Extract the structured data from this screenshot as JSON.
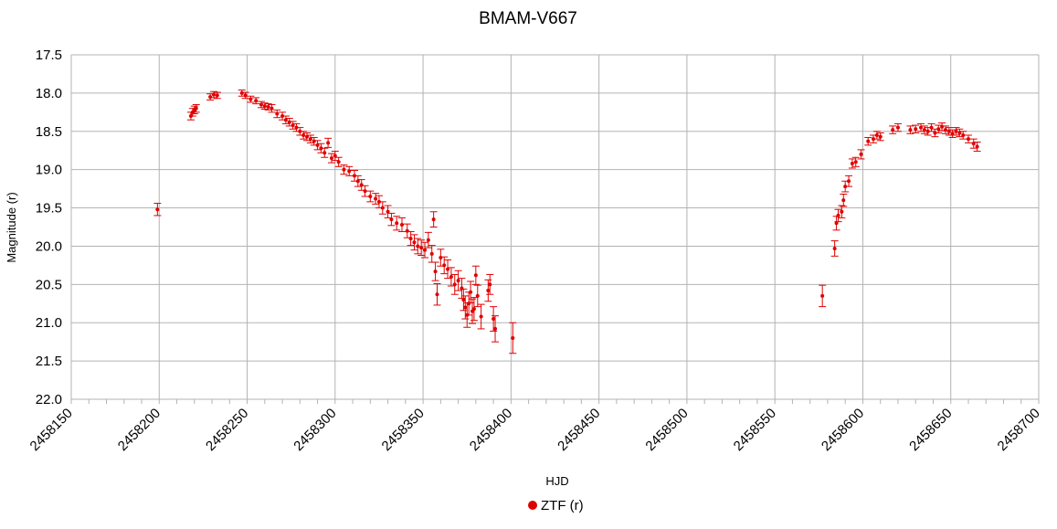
{
  "chart_data": {
    "type": "scatter",
    "title": "BMAM-V667",
    "xlabel": "HJD",
    "ylabel": "Magnitude (r)",
    "xlim": [
      2458150,
      2458700
    ],
    "ylim": [
      17.5,
      22.0
    ],
    "y_inverted": true,
    "grid": true,
    "legend_position": "bottom",
    "x_ticks": [
      "2458150",
      "2458200",
      "2458250",
      "2458300",
      "2458350",
      "2458400",
      "2458450",
      "2458500",
      "2458550",
      "2458600",
      "2458650",
      "2458700"
    ],
    "y_ticks": [
      "17.5",
      "18.0",
      "18.5",
      "19.0",
      "19.5",
      "20.0",
      "20.5",
      "21.0",
      "21.5",
      "22.0"
    ],
    "colors": {
      "series": "#e00000",
      "grid": "#b3b3b3"
    },
    "series": [
      {
        "name": "ZTF (r)",
        "points": [
          [
            2458199,
            19.52,
            0.08
          ],
          [
            2458218,
            18.3,
            0.05
          ],
          [
            2458219,
            18.25,
            0.05
          ],
          [
            2458220,
            18.22,
            0.05
          ],
          [
            2458221,
            18.2,
            0.05
          ],
          [
            2458229,
            18.05,
            0.04
          ],
          [
            2458231,
            18.02,
            0.04
          ],
          [
            2458233,
            18.03,
            0.04
          ],
          [
            2458247,
            18.0,
            0.04
          ],
          [
            2458249,
            18.03,
            0.04
          ],
          [
            2458252,
            18.08,
            0.04
          ],
          [
            2458255,
            18.1,
            0.04
          ],
          [
            2458258,
            18.15,
            0.04
          ],
          [
            2458260,
            18.17,
            0.04
          ],
          [
            2458262,
            18.18,
            0.04
          ],
          [
            2458264,
            18.2,
            0.05
          ],
          [
            2458267,
            18.27,
            0.05
          ],
          [
            2458270,
            18.3,
            0.05
          ],
          [
            2458272,
            18.35,
            0.05
          ],
          [
            2458274,
            18.38,
            0.05
          ],
          [
            2458276,
            18.42,
            0.05
          ],
          [
            2458278,
            18.45,
            0.05
          ],
          [
            2458280,
            18.5,
            0.05
          ],
          [
            2458282,
            18.55,
            0.05
          ],
          [
            2458284,
            18.57,
            0.05
          ],
          [
            2458286,
            18.6,
            0.05
          ],
          [
            2458288,
            18.63,
            0.05
          ],
          [
            2458290,
            18.68,
            0.06
          ],
          [
            2458292,
            18.72,
            0.06
          ],
          [
            2458294,
            18.78,
            0.06
          ],
          [
            2458296,
            18.65,
            0.06
          ],
          [
            2458298,
            18.85,
            0.06
          ],
          [
            2458300,
            18.82,
            0.06
          ],
          [
            2458302,
            18.9,
            0.06
          ],
          [
            2458305,
            19.0,
            0.06
          ],
          [
            2458308,
            19.02,
            0.06
          ],
          [
            2458311,
            19.08,
            0.07
          ],
          [
            2458313,
            19.15,
            0.07
          ],
          [
            2458315,
            19.2,
            0.07
          ],
          [
            2458317,
            19.28,
            0.07
          ],
          [
            2458320,
            19.35,
            0.07
          ],
          [
            2458323,
            19.38,
            0.07
          ],
          [
            2458325,
            19.42,
            0.08
          ],
          [
            2458327,
            19.5,
            0.08
          ],
          [
            2458330,
            19.55,
            0.08
          ],
          [
            2458332,
            19.65,
            0.08
          ],
          [
            2458335,
            19.7,
            0.09
          ],
          [
            2458338,
            19.72,
            0.09
          ],
          [
            2458341,
            19.8,
            0.09
          ],
          [
            2458343,
            19.9,
            0.09
          ],
          [
            2458345,
            19.95,
            0.1
          ],
          [
            2458347,
            20.0,
            0.1
          ],
          [
            2458349,
            20.02,
            0.1
          ],
          [
            2458351,
            20.05,
            0.1
          ],
          [
            2458353,
            19.92,
            0.1
          ],
          [
            2458355,
            20.1,
            0.11
          ],
          [
            2458356,
            19.65,
            0.1
          ],
          [
            2458357,
            20.33,
            0.12
          ],
          [
            2458358,
            20.63,
            0.14
          ],
          [
            2458360,
            20.15,
            0.11
          ],
          [
            2458362,
            20.25,
            0.11
          ],
          [
            2458364,
            20.3,
            0.12
          ],
          [
            2458366,
            20.4,
            0.12
          ],
          [
            2458368,
            20.5,
            0.13
          ],
          [
            2458370,
            20.45,
            0.13
          ],
          [
            2458372,
            20.55,
            0.13
          ],
          [
            2458373,
            20.7,
            0.14
          ],
          [
            2458374,
            20.8,
            0.15
          ],
          [
            2458375,
            20.9,
            0.16
          ],
          [
            2458376,
            20.75,
            0.15
          ],
          [
            2458377,
            20.6,
            0.14
          ],
          [
            2458378,
            20.85,
            0.16
          ],
          [
            2458379,
            20.82,
            0.15
          ],
          [
            2458380,
            20.38,
            0.12
          ],
          [
            2458381,
            20.65,
            0.14
          ],
          [
            2458383,
            20.92,
            0.16
          ],
          [
            2458387,
            20.58,
            0.14
          ],
          [
            2458388,
            20.5,
            0.13
          ],
          [
            2458390,
            20.95,
            0.16
          ],
          [
            2458391,
            21.08,
            0.17
          ],
          [
            2458401,
            21.2,
            0.2
          ],
          [
            2458577,
            20.65,
            0.14
          ],
          [
            2458584,
            20.03,
            0.1
          ],
          [
            2458585,
            19.7,
            0.09
          ],
          [
            2458586,
            19.6,
            0.08
          ],
          [
            2458588,
            19.55,
            0.08
          ],
          [
            2458589,
            19.4,
            0.08
          ],
          [
            2458590,
            19.22,
            0.07
          ],
          [
            2458592,
            19.15,
            0.07
          ],
          [
            2458594,
            18.92,
            0.06
          ],
          [
            2458596,
            18.9,
            0.06
          ],
          [
            2458599,
            18.8,
            0.06
          ],
          [
            2458603,
            18.63,
            0.05
          ],
          [
            2458606,
            18.6,
            0.05
          ],
          [
            2458608,
            18.55,
            0.05
          ],
          [
            2458610,
            18.57,
            0.05
          ],
          [
            2458617,
            18.48,
            0.05
          ],
          [
            2458620,
            18.45,
            0.05
          ],
          [
            2458627,
            18.48,
            0.05
          ],
          [
            2458630,
            18.47,
            0.05
          ],
          [
            2458633,
            18.45,
            0.05
          ],
          [
            2458635,
            18.48,
            0.05
          ],
          [
            2458637,
            18.5,
            0.05
          ],
          [
            2458639,
            18.45,
            0.05
          ],
          [
            2458641,
            18.52,
            0.05
          ],
          [
            2458643,
            18.47,
            0.05
          ],
          [
            2458645,
            18.44,
            0.05
          ],
          [
            2458647,
            18.48,
            0.05
          ],
          [
            2458649,
            18.5,
            0.05
          ],
          [
            2458651,
            18.53,
            0.05
          ],
          [
            2458653,
            18.5,
            0.05
          ],
          [
            2458655,
            18.52,
            0.05
          ],
          [
            2458657,
            18.55,
            0.05
          ],
          [
            2458660,
            18.6,
            0.05
          ],
          [
            2458663,
            18.66,
            0.06
          ],
          [
            2458665,
            18.7,
            0.06
          ]
        ]
      }
    ]
  }
}
